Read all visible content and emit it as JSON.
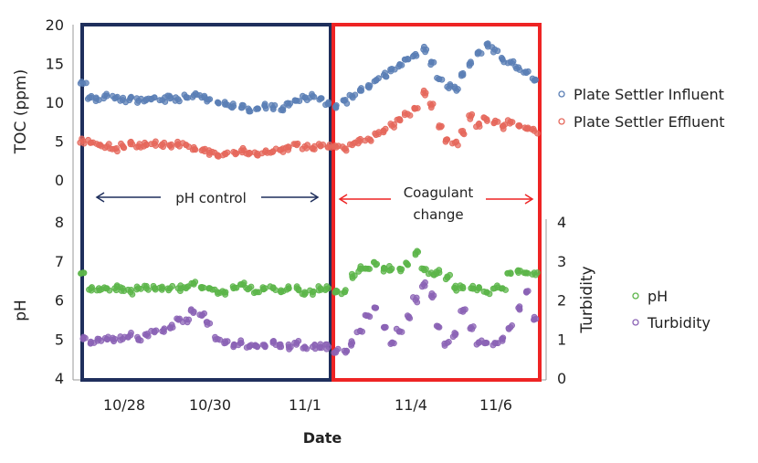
{
  "chart_data": [
    {
      "type": "scatter",
      "xlabel": "Date",
      "ylabel": "TOC (ppm)",
      "ylim": [
        0,
        20
      ],
      "yticks": [
        "0",
        "5",
        "10",
        "15",
        "20"
      ],
      "x_ticks": [
        "10/28",
        "10/30",
        "11/1",
        "11/4",
        "11/6"
      ],
      "legend_position": "right",
      "series": [
        {
          "name": "Plate Settler Influent",
          "color": "#5b7fb5",
          "points": [
            [
              0.0,
              12.4
            ],
            [
              0.2,
              10.6
            ],
            [
              0.4,
              10.3
            ],
            [
              0.6,
              10.8
            ],
            [
              0.8,
              10.5
            ],
            [
              1.0,
              10.3
            ],
            [
              1.2,
              10.6
            ],
            [
              1.4,
              10.2
            ],
            [
              1.6,
              10.4
            ],
            [
              1.8,
              10.6
            ],
            [
              2.0,
              10.3
            ],
            [
              2.2,
              10.5
            ],
            [
              2.4,
              10.4
            ],
            [
              2.6,
              10.7
            ],
            [
              2.8,
              10.9
            ],
            [
              3.0,
              10.6
            ],
            [
              3.2,
              10.4
            ],
            [
              3.4,
              10.0
            ],
            [
              3.6,
              9.8
            ],
            [
              3.8,
              9.5
            ],
            [
              4.0,
              9.3
            ],
            [
              4.2,
              9.0
            ],
            [
              4.4,
              9.2
            ],
            [
              4.6,
              9.5
            ],
            [
              4.8,
              9.3
            ],
            [
              5.0,
              9.0
            ],
            [
              5.2,
              9.6
            ],
            [
              5.4,
              10.2
            ],
            [
              5.6,
              10.6
            ],
            [
              5.8,
              10.8
            ],
            [
              6.0,
              10.5
            ],
            [
              6.2,
              10.0
            ],
            [
              6.4,
              9.6
            ],
            [
              6.6,
              10.2
            ],
            [
              6.8,
              10.8
            ],
            [
              7.0,
              11.5
            ],
            [
              7.2,
              12.0
            ],
            [
              7.4,
              12.8
            ],
            [
              7.6,
              13.5
            ],
            [
              7.8,
              14.3
            ],
            [
              8.0,
              14.8
            ],
            [
              8.2,
              15.6
            ],
            [
              8.4,
              16.2
            ],
            [
              8.6,
              16.8
            ],
            [
              8.8,
              15.2
            ],
            [
              9.0,
              13.0
            ],
            [
              9.2,
              12.0
            ],
            [
              9.4,
              11.8
            ],
            [
              9.6,
              13.5
            ],
            [
              9.8,
              15.0
            ],
            [
              10.0,
              16.5
            ],
            [
              10.2,
              17.5
            ],
            [
              10.4,
              16.8
            ],
            [
              10.6,
              15.5
            ],
            [
              10.8,
              15.2
            ],
            [
              11.0,
              14.5
            ],
            [
              11.2,
              13.8
            ],
            [
              11.4,
              12.8
            ]
          ]
        },
        {
          "name": "Plate Settler Effluent",
          "color": "#e5685c",
          "points": [
            [
              0.0,
              5.0
            ],
            [
              0.2,
              4.8
            ],
            [
              0.4,
              4.5
            ],
            [
              0.6,
              4.3
            ],
            [
              0.8,
              4.0
            ],
            [
              1.0,
              4.4
            ],
            [
              1.2,
              4.6
            ],
            [
              1.4,
              4.3
            ],
            [
              1.6,
              4.5
            ],
            [
              1.8,
              4.7
            ],
            [
              2.0,
              4.6
            ],
            [
              2.2,
              4.4
            ],
            [
              2.4,
              4.6
            ],
            [
              2.6,
              4.5
            ],
            [
              2.8,
              4.2
            ],
            [
              3.0,
              3.8
            ],
            [
              3.2,
              3.5
            ],
            [
              3.4,
              3.2
            ],
            [
              3.6,
              3.3
            ],
            [
              3.8,
              3.6
            ],
            [
              4.0,
              3.8
            ],
            [
              4.2,
              3.5
            ],
            [
              4.4,
              3.4
            ],
            [
              4.6,
              3.6
            ],
            [
              4.8,
              3.7
            ],
            [
              5.0,
              3.9
            ],
            [
              5.2,
              4.2
            ],
            [
              5.4,
              4.5
            ],
            [
              5.6,
              4.3
            ],
            [
              5.8,
              4.1
            ],
            [
              6.0,
              4.4
            ],
            [
              6.2,
              4.2
            ],
            [
              6.4,
              4.2
            ],
            [
              6.6,
              4.0
            ],
            [
              6.8,
              4.5
            ],
            [
              7.0,
              5.0
            ],
            [
              7.2,
              5.3
            ],
            [
              7.4,
              5.8
            ],
            [
              7.6,
              6.3
            ],
            [
              7.8,
              7.0
            ],
            [
              8.0,
              7.8
            ],
            [
              8.2,
              8.5
            ],
            [
              8.4,
              9.2
            ],
            [
              8.6,
              11.2
            ],
            [
              8.8,
              9.6
            ],
            [
              9.0,
              7.0
            ],
            [
              9.2,
              5.2
            ],
            [
              9.4,
              4.8
            ],
            [
              9.6,
              6.0
            ],
            [
              9.8,
              8.2
            ],
            [
              10.0,
              7.2
            ],
            [
              10.2,
              7.8
            ],
            [
              10.4,
              7.4
            ],
            [
              10.6,
              6.9
            ],
            [
              10.8,
              7.5
            ],
            [
              11.0,
              7.0
            ],
            [
              11.2,
              6.6
            ],
            [
              11.4,
              6.3
            ]
          ]
        }
      ]
    },
    {
      "type": "scatter",
      "xlabel": "Date",
      "ylabel": "pH",
      "ylim": [
        4,
        8
      ],
      "yticks": [
        "4",
        "5",
        "6",
        "7",
        "8"
      ],
      "y2label": "Turbidity",
      "y2lim": [
        0,
        4
      ],
      "y2ticks": [
        "0",
        "1",
        "2",
        "3",
        "4"
      ],
      "x_ticks": [
        "10/28",
        "10/30",
        "11/1",
        "11/4",
        "11/6"
      ],
      "legend_position": "right",
      "series": [
        {
          "name": "pH",
          "axis": "left",
          "color": "#5cb54a",
          "points": [
            [
              0.0,
              6.7
            ],
            [
              0.2,
              6.3
            ],
            [
              0.4,
              6.3
            ],
            [
              0.6,
              6.3
            ],
            [
              0.8,
              6.3
            ],
            [
              1.0,
              6.3
            ],
            [
              1.2,
              6.2
            ],
            [
              1.4,
              6.3
            ],
            [
              1.6,
              6.3
            ],
            [
              1.8,
              6.3
            ],
            [
              2.0,
              6.3
            ],
            [
              2.2,
              6.3
            ],
            [
              2.4,
              6.3
            ],
            [
              2.6,
              6.3
            ],
            [
              2.8,
              6.4
            ],
            [
              3.0,
              6.3
            ],
            [
              3.2,
              6.3
            ],
            [
              3.4,
              6.2
            ],
            [
              3.6,
              6.2
            ],
            [
              3.8,
              6.3
            ],
            [
              4.0,
              6.4
            ],
            [
              4.2,
              6.3
            ],
            [
              4.4,
              6.2
            ],
            [
              4.6,
              6.3
            ],
            [
              4.8,
              6.3
            ],
            [
              5.0,
              6.2
            ],
            [
              5.2,
              6.3
            ],
            [
              5.4,
              6.3
            ],
            [
              5.6,
              6.2
            ],
            [
              5.8,
              6.2
            ],
            [
              6.0,
              6.3
            ],
            [
              6.2,
              6.3
            ],
            [
              6.4,
              6.2
            ],
            [
              6.6,
              6.2
            ],
            [
              6.8,
              6.6
            ],
            [
              7.0,
              6.8
            ],
            [
              7.2,
              6.8
            ],
            [
              7.4,
              6.9
            ],
            [
              7.6,
              6.8
            ],
            [
              7.8,
              6.8
            ],
            [
              8.0,
              6.8
            ],
            [
              8.2,
              6.9
            ],
            [
              8.4,
              7.2
            ],
            [
              8.6,
              6.8
            ],
            [
              8.8,
              6.7
            ],
            [
              9.0,
              6.7
            ],
            [
              9.2,
              6.6
            ],
            [
              9.4,
              6.3
            ],
            [
              9.6,
              6.3
            ],
            [
              9.8,
              6.3
            ],
            [
              10.0,
              6.3
            ],
            [
              10.2,
              6.2
            ],
            [
              10.4,
              6.3
            ],
            [
              10.6,
              6.3
            ],
            [
              10.8,
              6.7
            ],
            [
              11.0,
              6.7
            ],
            [
              11.2,
              6.7
            ],
            [
              11.4,
              6.7
            ]
          ]
        },
        {
          "name": "Turbidity",
          "axis": "right",
          "color": "#8b63b5",
          "points": [
            [
              0.0,
              1.0
            ],
            [
              0.2,
              0.9
            ],
            [
              0.4,
              1.0
            ],
            [
              0.6,
              1.0
            ],
            [
              0.8,
              1.0
            ],
            [
              1.0,
              1.0
            ],
            [
              1.2,
              1.1
            ],
            [
              1.4,
              1.0
            ],
            [
              1.6,
              1.1
            ],
            [
              1.8,
              1.2
            ],
            [
              2.0,
              1.2
            ],
            [
              2.2,
              1.3
            ],
            [
              2.4,
              1.5
            ],
            [
              2.6,
              1.5
            ],
            [
              2.8,
              1.7
            ],
            [
              3.0,
              1.6
            ],
            [
              3.2,
              1.4
            ],
            [
              3.4,
              1.0
            ],
            [
              3.6,
              0.9
            ],
            [
              3.8,
              0.8
            ],
            [
              4.0,
              0.9
            ],
            [
              4.2,
              0.8
            ],
            [
              4.4,
              0.8
            ],
            [
              4.6,
              0.8
            ],
            [
              4.8,
              0.9
            ],
            [
              5.0,
              0.8
            ],
            [
              5.2,
              0.8
            ],
            [
              5.4,
              0.9
            ],
            [
              5.6,
              0.8
            ],
            [
              5.8,
              0.8
            ],
            [
              6.0,
              0.8
            ],
            [
              6.2,
              0.8
            ],
            [
              6.4,
              0.7
            ],
            [
              6.6,
              0.7
            ],
            [
              6.8,
              0.9
            ],
            [
              7.0,
              1.2
            ],
            [
              7.2,
              1.6
            ],
            [
              7.4,
              1.8
            ],
            [
              7.6,
              1.3
            ],
            [
              7.8,
              0.9
            ],
            [
              8.0,
              1.2
            ],
            [
              8.2,
              1.6
            ],
            [
              8.4,
              2.0
            ],
            [
              8.6,
              2.4
            ],
            [
              8.8,
              2.1
            ],
            [
              9.0,
              1.3
            ],
            [
              9.2,
              0.9
            ],
            [
              9.4,
              1.1
            ],
            [
              9.6,
              1.7
            ],
            [
              9.8,
              1.3
            ],
            [
              10.0,
              0.9
            ],
            [
              10.2,
              0.9
            ],
            [
              10.4,
              0.9
            ],
            [
              10.6,
              1.0
            ],
            [
              10.8,
              1.3
            ],
            [
              11.0,
              1.8
            ],
            [
              11.2,
              2.2
            ],
            [
              11.4,
              1.5
            ]
          ]
        }
      ]
    }
  ],
  "annotations": {
    "ph_control": "pH control",
    "coagulant_line1": "Coagulant",
    "coagulant_line2": "change"
  },
  "colors": {
    "ph_control_region": "#1f2f5c",
    "coagulant_region": "#ee2424",
    "ph_control_arrow": "#1f2f5c",
    "coagulant_arrow": "#ee2424"
  }
}
